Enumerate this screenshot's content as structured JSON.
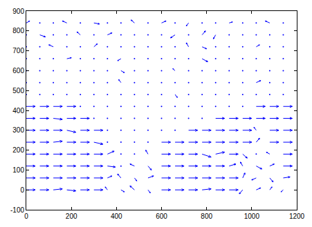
{
  "chart_data": {
    "type": "quiver",
    "x": [
      0,
      60,
      120,
      180,
      240,
      300,
      360,
      420,
      480,
      540,
      600,
      660,
      720,
      780,
      840,
      900,
      960,
      1020,
      1080,
      1140
    ],
    "y": [
      0,
      60,
      120,
      180,
      240,
      300,
      360,
      420,
      480,
      540,
      600,
      660,
      720,
      780,
      840
    ],
    "u": [
      [
        40,
        40,
        40,
        40,
        40,
        40,
        -10,
        15,
        -20,
        10,
        40,
        40,
        40,
        40,
        40,
        40,
        -15,
        20,
        10,
        -10
      ],
      [
        40,
        40,
        40,
        40,
        40,
        40,
        20,
        -15,
        10,
        25,
        40,
        40,
        40,
        40,
        40,
        40,
        10,
        -20,
        15,
        30
      ],
      [
        40,
        40,
        40,
        40,
        40,
        40,
        35,
        0,
        -20,
        15,
        40,
        40,
        40,
        40,
        40,
        30,
        -10,
        25,
        20,
        40
      ],
      [
        40,
        40,
        40,
        40,
        40,
        40,
        30,
        0,
        0,
        -10,
        40,
        40,
        40,
        40,
        40,
        40,
        20,
        0,
        -15,
        40
      ],
      [
        40,
        40,
        40,
        40,
        40,
        40,
        0,
        0,
        0,
        0,
        40,
        40,
        40,
        40,
        40,
        40,
        40,
        15,
        40,
        40
      ],
      [
        40,
        40,
        40,
        40,
        40,
        40,
        0,
        0,
        0,
        0,
        0,
        0,
        40,
        40,
        40,
        40,
        40,
        -10,
        40,
        40
      ],
      [
        40,
        40,
        40,
        40,
        40,
        0,
        0,
        0,
        0,
        0,
        0,
        0,
        0,
        0,
        40,
        40,
        40,
        40,
        40,
        40
      ],
      [
        40,
        40,
        40,
        40,
        0,
        0,
        0,
        0,
        0,
        0,
        0,
        0,
        0,
        0,
        0,
        0,
        0,
        40,
        40,
        40
      ],
      [
        0,
        0,
        0,
        0,
        0,
        0,
        0,
        0,
        0,
        0,
        0,
        10,
        0,
        0,
        0,
        0,
        0,
        0,
        0,
        0
      ],
      [
        0,
        0,
        0,
        0,
        0,
        0,
        0,
        -10,
        0,
        0,
        0,
        0,
        0,
        0,
        0,
        0,
        0,
        20,
        0,
        0
      ],
      [
        0,
        0,
        0,
        0,
        0,
        0,
        0,
        15,
        0,
        0,
        0,
        -10,
        0,
        0,
        0,
        0,
        0,
        0,
        0,
        0
      ],
      [
        0,
        0,
        0,
        20,
        0,
        0,
        0,
        -15,
        0,
        0,
        0,
        0,
        0,
        25,
        0,
        0,
        0,
        0,
        0,
        0
      ],
      [
        0,
        0,
        -20,
        0,
        0,
        15,
        0,
        0,
        0,
        0,
        0,
        0,
        -10,
        20,
        0,
        0,
        0,
        15,
        0,
        0
      ],
      [
        0,
        25,
        0,
        0,
        -15,
        0,
        20,
        0,
        0,
        0,
        0,
        -20,
        0,
        15,
        -10,
        0,
        0,
        0,
        0,
        0
      ],
      [
        15,
        0,
        0,
        -20,
        0,
        25,
        0,
        0,
        -15,
        0,
        20,
        0,
        -10,
        0,
        0,
        15,
        0,
        0,
        -20,
        0
      ]
    ],
    "v": [
      [
        0,
        0,
        5,
        -5,
        0,
        0,
        15,
        -10,
        20,
        -15,
        0,
        0,
        0,
        5,
        0,
        0,
        -20,
        10,
        15,
        -10
      ],
      [
        0,
        0,
        0,
        0,
        0,
        0,
        10,
        20,
        -15,
        10,
        0,
        0,
        0,
        0,
        0,
        0,
        25,
        -10,
        -20,
        5
      ],
      [
        0,
        0,
        0,
        0,
        0,
        0,
        -5,
        0,
        10,
        -20,
        0,
        0,
        0,
        0,
        0,
        10,
        20,
        -15,
        10,
        0
      ],
      [
        0,
        0,
        0,
        0,
        0,
        0,
        15,
        0,
        0,
        20,
        0,
        0,
        0,
        -15,
        10,
        0,
        -20,
        0,
        10,
        0
      ],
      [
        0,
        0,
        5,
        0,
        0,
        -10,
        0,
        0,
        0,
        0,
        0,
        0,
        0,
        0,
        0,
        0,
        0,
        20,
        0,
        0
      ],
      [
        0,
        0,
        0,
        -10,
        0,
        0,
        0,
        0,
        0,
        0,
        0,
        0,
        0,
        0,
        0,
        0,
        0,
        15,
        0,
        0
      ],
      [
        0,
        0,
        -5,
        0,
        0,
        0,
        0,
        0,
        0,
        0,
        0,
        0,
        0,
        0,
        0,
        0,
        0,
        0,
        0,
        0
      ],
      [
        0,
        0,
        0,
        0,
        0,
        0,
        0,
        0,
        0,
        0,
        0,
        0,
        0,
        0,
        0,
        0,
        0,
        0,
        0,
        0
      ],
      [
        0,
        0,
        0,
        0,
        0,
        0,
        0,
        0,
        0,
        0,
        0,
        -15,
        0,
        0,
        0,
        0,
        0,
        0,
        0,
        0
      ],
      [
        0,
        0,
        0,
        0,
        0,
        0,
        0,
        15,
        0,
        0,
        0,
        0,
        0,
        0,
        0,
        0,
        0,
        10,
        0,
        0
      ],
      [
        0,
        0,
        0,
        0,
        0,
        0,
        0,
        -10,
        0,
        0,
        0,
        10,
        0,
        0,
        0,
        0,
        0,
        0,
        0,
        0
      ],
      [
        0,
        0,
        0,
        5,
        0,
        0,
        0,
        -10,
        0,
        0,
        0,
        0,
        0,
        -15,
        0,
        0,
        0,
        0,
        0,
        0
      ],
      [
        0,
        0,
        10,
        0,
        0,
        15,
        0,
        0,
        0,
        0,
        0,
        0,
        20,
        -10,
        0,
        0,
        0,
        10,
        0,
        0
      ],
      [
        0,
        -10,
        0,
        0,
        15,
        0,
        10,
        0,
        0,
        0,
        0,
        -15,
        0,
        20,
        -20,
        0,
        0,
        0,
        0,
        0
      ],
      [
        10,
        0,
        0,
        10,
        0,
        -5,
        0,
        0,
        15,
        0,
        10,
        0,
        -15,
        0,
        0,
        5,
        0,
        0,
        10,
        0
      ]
    ],
    "color": "#0000ff",
    "xlim": [
      0,
      1200
    ],
    "xticks": [
      0,
      200,
      400,
      600,
      800,
      1000,
      1200
    ],
    "ylim": [
      -100,
      900
    ],
    "yticks": [
      -100,
      0,
      100,
      200,
      300,
      400,
      500,
      600,
      700,
      800,
      900
    ],
    "grid": false
  }
}
